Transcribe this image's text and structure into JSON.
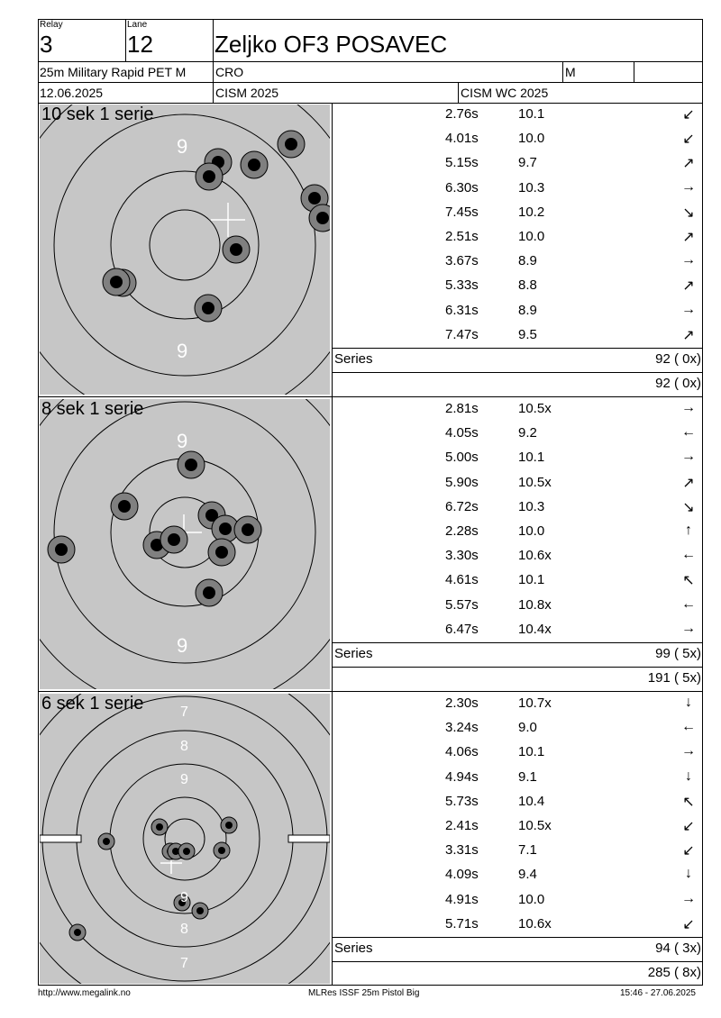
{
  "header": {
    "relay_label": "Relay",
    "relay_value": "3",
    "lane_label": "Lane",
    "lane_value": "12",
    "athlete_name": "Zeljko OF3 POSAVEC",
    "event": "25m Military Rapid PET M",
    "nation": "CRO",
    "gender": "M",
    "date": "12.06.2025",
    "competition": "CISM 2025",
    "championship": "CISM WC 2025"
  },
  "series": [
    {
      "title": "10 sek 1 serie",
      "ring_labels": [
        "9",
        "9"
      ],
      "shots": [
        {
          "time": "2.76s",
          "score": "10.1",
          "dir": "↙"
        },
        {
          "time": "4.01s",
          "score": "10.0",
          "dir": "↙"
        },
        {
          "time": "5.15s",
          "score": "9.7",
          "dir": "↗"
        },
        {
          "time": "6.30s",
          "score": "10.3",
          "dir": "→"
        },
        {
          "time": "7.45s",
          "score": "10.2",
          "dir": "↘"
        },
        {
          "time": "2.51s",
          "score": "10.0",
          "dir": "↗"
        },
        {
          "time": "3.67s",
          "score": "8.9",
          "dir": "→"
        },
        {
          "time": "5.33s",
          "score": "8.8",
          "dir": "↗"
        },
        {
          "time": "6.31s",
          "score": "8.9",
          "dir": "→"
        },
        {
          "time": "7.47s",
          "score": "9.5",
          "dir": "↗"
        }
      ],
      "series_label": "Series",
      "series_total": "92 ( 0x)",
      "running_total": "92 ( 0x)"
    },
    {
      "title": "8 sek 1 serie",
      "ring_labels": [
        "9",
        "9"
      ],
      "shots": [
        {
          "time": "2.81s",
          "score": "10.5x",
          "dir": "→"
        },
        {
          "time": "4.05s",
          "score": "9.2",
          "dir": "←"
        },
        {
          "time": "5.00s",
          "score": "10.1",
          "dir": "→"
        },
        {
          "time": "5.90s",
          "score": "10.5x",
          "dir": "↗"
        },
        {
          "time": "6.72s",
          "score": "10.3",
          "dir": "↘"
        },
        {
          "time": "2.28s",
          "score": "10.0",
          "dir": "↑"
        },
        {
          "time": "3.30s",
          "score": "10.6x",
          "dir": "←"
        },
        {
          "time": "4.61s",
          "score": "10.1",
          "dir": "↖"
        },
        {
          "time": "5.57s",
          "score": "10.8x",
          "dir": "←"
        },
        {
          "time": "6.47s",
          "score": "10.4x",
          "dir": "→"
        }
      ],
      "series_label": "Series",
      "series_total": "99 ( 5x)",
      "running_total": "191 ( 5x)"
    },
    {
      "title": "6 sek 1 serie",
      "ring_labels": [
        "7",
        "8",
        "9",
        "9",
        "8",
        "7"
      ],
      "shots": [
        {
          "time": "2.30s",
          "score": "10.7x",
          "dir": "↓"
        },
        {
          "time": "3.24s",
          "score": "9.0",
          "dir": "←"
        },
        {
          "time": "4.06s",
          "score": "10.1",
          "dir": "→"
        },
        {
          "time": "4.94s",
          "score": "9.1",
          "dir": "↓"
        },
        {
          "time": "5.73s",
          "score": "10.4",
          "dir": "↖"
        },
        {
          "time": "2.41s",
          "score": "10.5x",
          "dir": "↙"
        },
        {
          "time": "3.31s",
          "score": "7.1",
          "dir": "↙"
        },
        {
          "time": "4.09s",
          "score": "9.4",
          "dir": "↓"
        },
        {
          "time": "4.91s",
          "score": "10.0",
          "dir": "→"
        },
        {
          "time": "5.71s",
          "score": "10.6x",
          "dir": "↙"
        }
      ],
      "series_label": "Series",
      "series_total": "94 ( 3x)",
      "running_total": "285 ( 8x)"
    }
  ],
  "footer": {
    "url": "http://www.megalink.no",
    "software": "MLRes ISSF 25m Pistol Big",
    "timestamp": "15:46 - 27.06.2025"
  },
  "colors": {
    "target_bg": "#c6c6c6",
    "hole_ring": "#808080",
    "hole_center": "#000000"
  }
}
